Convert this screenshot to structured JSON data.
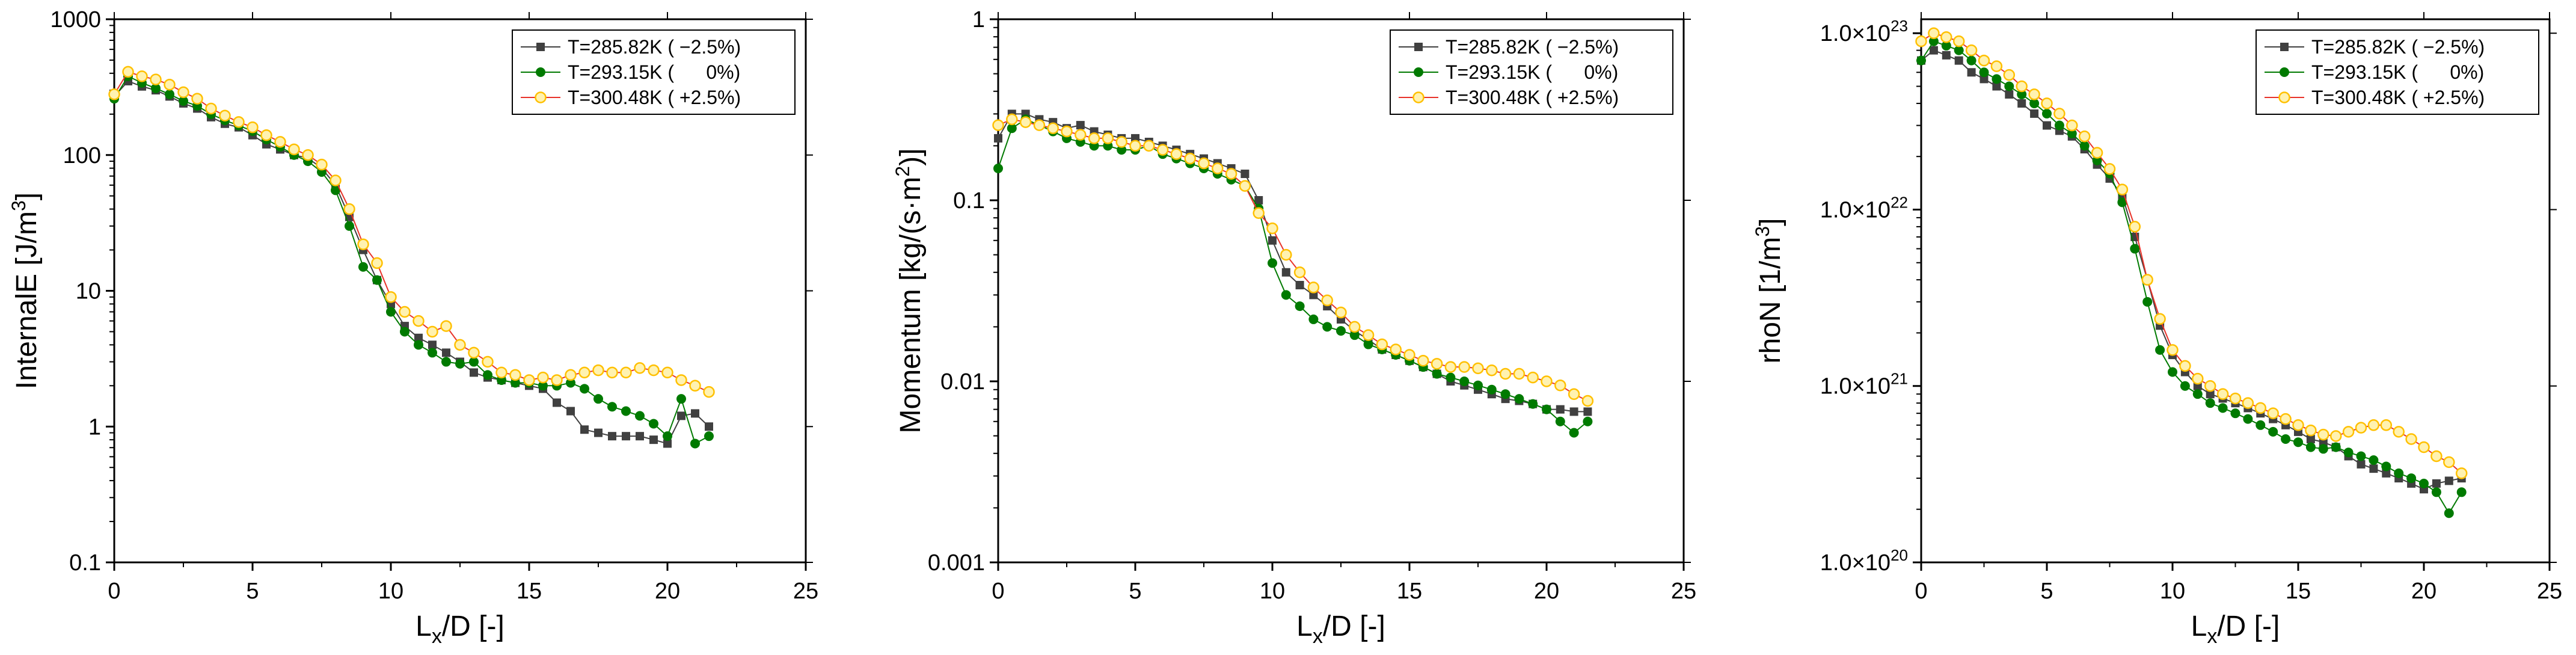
{
  "chart_data": [
    {
      "type": "line",
      "yscale": "log",
      "title": "",
      "xlabel": "L_x/D [-]",
      "ylabel": "InternalE [J/m^3]",
      "xlim": [
        0,
        25
      ],
      "ylim": [
        0.1,
        1000
      ],
      "xticks": [
        0,
        5,
        10,
        15,
        20,
        25
      ],
      "xtick_labels": [
        "0",
        "5",
        "10",
        "15",
        "20",
        "25"
      ],
      "yticks": [
        0.1,
        1,
        10,
        100,
        1000
      ],
      "ytick_labels": [
        "0.1",
        "1",
        "10",
        "100",
        "1000"
      ],
      "legend_position": "top-right",
      "series": [
        {
          "name": "T=285.82K ( −2.5%)",
          "color": "#404040",
          "marker": "square",
          "x": [
            0,
            0.5,
            1,
            1.5,
            2,
            2.5,
            3,
            3.5,
            4,
            4.5,
            5,
            5.5,
            6,
            6.5,
            7,
            7.5,
            8,
            8.5,
            9,
            9.5,
            10,
            10.5,
            11,
            11.5,
            12,
            12.5,
            13,
            13.5,
            14,
            14.5,
            15,
            15.5,
            16,
            16.5,
            17,
            17.5,
            18,
            18.5,
            19,
            19.5,
            20,
            20.5,
            21,
            21.5
          ],
          "y": [
            270,
            350,
            320,
            300,
            270,
            240,
            220,
            190,
            170,
            160,
            140,
            120,
            110,
            100,
            95,
            80,
            60,
            35,
            20,
            12,
            8,
            5.5,
            4.5,
            4,
            3.5,
            3,
            2.5,
            2.3,
            2.2,
            2.1,
            2.0,
            1.9,
            1.5,
            1.3,
            0.95,
            0.9,
            0.85,
            0.85,
            0.85,
            0.8,
            0.75,
            1.2,
            1.25,
            1.0
          ]
        },
        {
          "name": "T=293.15K (      0%)",
          "color": "#007a00",
          "marker": "circle",
          "x": [
            0,
            0.5,
            1,
            1.5,
            2,
            2.5,
            3,
            3.5,
            4,
            4.5,
            5,
            5.5,
            6,
            6.5,
            7,
            7.5,
            8,
            8.5,
            9,
            9.5,
            10,
            10.5,
            11,
            11.5,
            12,
            12.5,
            13,
            13.5,
            14,
            14.5,
            15,
            15.5,
            16,
            16.5,
            17,
            17.5,
            18,
            18.5,
            19,
            19.5,
            20,
            20.5,
            21,
            21.5
          ],
          "y": [
            260,
            380,
            340,
            310,
            280,
            250,
            230,
            200,
            180,
            165,
            150,
            130,
            115,
            100,
            90,
            75,
            55,
            30,
            15,
            12,
            7,
            5,
            4,
            3.5,
            3,
            2.9,
            3,
            2.4,
            2.2,
            2.1,
            2.1,
            2.0,
            2.0,
            2.1,
            1.9,
            1.6,
            1.4,
            1.3,
            1.2,
            1.05,
            0.85,
            1.6,
            0.75,
            0.85
          ]
        },
        {
          "name": "T=300.48K ( +2.5%)",
          "color": "#ffc000",
          "marker": "circle-open",
          "x": [
            0,
            0.5,
            1,
            1.5,
            2,
            2.5,
            3,
            3.5,
            4,
            4.5,
            5,
            5.5,
            6,
            6.5,
            7,
            7.5,
            8,
            8.5,
            9,
            9.5,
            10,
            10.5,
            11,
            11.5,
            12,
            12.5,
            13,
            13.5,
            14,
            14.5,
            15,
            15.5,
            16,
            16.5,
            17,
            17.5,
            18,
            18.5,
            19,
            19.5,
            20,
            20.5,
            21,
            21.5
          ],
          "y": [
            280,
            410,
            380,
            360,
            330,
            290,
            260,
            220,
            195,
            175,
            160,
            140,
            125,
            110,
            100,
            85,
            65,
            40,
            22,
            16,
            9,
            7,
            6,
            5,
            5.5,
            4,
            3.5,
            3,
            2.5,
            2.4,
            2.2,
            2.3,
            2.2,
            2.4,
            2.5,
            2.6,
            2.5,
            2.5,
            2.7,
            2.6,
            2.5,
            2.2,
            2.0,
            1.8
          ]
        }
      ]
    },
    {
      "type": "line",
      "yscale": "log",
      "title": "",
      "xlabel": "L_x/D [-]",
      "ylabel": "Momentum [kg/(s·m^2)]",
      "xlim": [
        0,
        25
      ],
      "ylim": [
        0.001,
        1
      ],
      "xticks": [
        0,
        5,
        10,
        15,
        20,
        25
      ],
      "xtick_labels": [
        "0",
        "5",
        "10",
        "15",
        "20",
        "25"
      ],
      "yticks": [
        0.001,
        0.01,
        0.1,
        1
      ],
      "ytick_labels": [
        "0.001",
        "0.01",
        "0.1",
        "1"
      ],
      "legend_position": "top-right",
      "series": [
        {
          "name": "T=285.82K ( −2.5%)",
          "color": "#404040",
          "marker": "square",
          "x": [
            0,
            0.5,
            1,
            1.5,
            2,
            2.5,
            3,
            3.5,
            4,
            4.5,
            5,
            5.5,
            6,
            6.5,
            7,
            7.5,
            8,
            8.5,
            9,
            9.5,
            10,
            10.5,
            11,
            11.5,
            12,
            12.5,
            13,
            13.5,
            14,
            14.5,
            15,
            15.5,
            16,
            16.5,
            17,
            17.5,
            18,
            18.5,
            19,
            19.5,
            20,
            20.5,
            21,
            21.5
          ],
          "y": [
            0.22,
            0.3,
            0.3,
            0.28,
            0.27,
            0.25,
            0.26,
            0.24,
            0.23,
            0.22,
            0.22,
            0.21,
            0.2,
            0.19,
            0.18,
            0.17,
            0.16,
            0.15,
            0.14,
            0.1,
            0.06,
            0.04,
            0.034,
            0.03,
            0.026,
            0.022,
            0.019,
            0.017,
            0.015,
            0.014,
            0.013,
            0.012,
            0.011,
            0.01,
            0.0095,
            0.009,
            0.0085,
            0.008,
            0.0078,
            0.0075,
            0.007,
            0.007,
            0.0068,
            0.0068
          ]
        },
        {
          "name": "T=293.15K (      0%)",
          "color": "#007a00",
          "marker": "circle",
          "x": [
            0,
            0.5,
            1,
            1.5,
            2,
            2.5,
            3,
            3.5,
            4,
            4.5,
            5,
            5.5,
            6,
            6.5,
            7,
            7.5,
            8,
            8.5,
            9,
            9.5,
            10,
            10.5,
            11,
            11.5,
            12,
            12.5,
            13,
            13.5,
            14,
            14.5,
            15,
            15.5,
            16,
            16.5,
            17,
            17.5,
            18,
            18.5,
            19,
            19.5,
            20,
            20.5,
            21,
            21.5
          ],
          "y": [
            0.15,
            0.25,
            0.28,
            0.26,
            0.24,
            0.22,
            0.21,
            0.2,
            0.2,
            0.19,
            0.19,
            0.2,
            0.18,
            0.17,
            0.16,
            0.15,
            0.14,
            0.13,
            0.12,
            0.09,
            0.045,
            0.03,
            0.026,
            0.022,
            0.02,
            0.019,
            0.018,
            0.016,
            0.015,
            0.014,
            0.013,
            0.012,
            0.011,
            0.0105,
            0.01,
            0.0095,
            0.009,
            0.0085,
            0.008,
            0.0075,
            0.007,
            0.006,
            0.0052,
            0.006
          ]
        },
        {
          "name": "T=300.48K ( +2.5%)",
          "color": "#ffc000",
          "marker": "circle-open",
          "x": [
            0,
            0.5,
            1,
            1.5,
            2,
            2.5,
            3,
            3.5,
            4,
            4.5,
            5,
            5.5,
            6,
            6.5,
            7,
            7.5,
            8,
            8.5,
            9,
            9.5,
            10,
            10.5,
            11,
            11.5,
            12,
            12.5,
            13,
            13.5,
            14,
            14.5,
            15,
            15.5,
            16,
            16.5,
            17,
            17.5,
            18,
            18.5,
            19,
            19.5,
            20,
            20.5,
            21,
            21.5
          ],
          "y": [
            0.26,
            0.28,
            0.27,
            0.26,
            0.25,
            0.24,
            0.23,
            0.22,
            0.22,
            0.21,
            0.2,
            0.2,
            0.19,
            0.18,
            0.17,
            0.16,
            0.15,
            0.14,
            0.12,
            0.085,
            0.07,
            0.05,
            0.04,
            0.033,
            0.028,
            0.024,
            0.02,
            0.018,
            0.016,
            0.015,
            0.014,
            0.013,
            0.0125,
            0.012,
            0.012,
            0.0118,
            0.0115,
            0.011,
            0.011,
            0.0105,
            0.01,
            0.0095,
            0.0085,
            0.0078
          ]
        }
      ]
    },
    {
      "type": "line",
      "yscale": "log",
      "title": "",
      "xlabel": "L_x/D [-]",
      "ylabel": "rhoN [1/m^3]",
      "xlim": [
        0,
        25
      ],
      "ylim": [
        1e+20,
        1.2e+23
      ],
      "xticks": [
        0,
        5,
        10,
        15,
        20,
        25
      ],
      "xtick_labels": [
        "0",
        "5",
        "10",
        "15",
        "20",
        "25"
      ],
      "yticks": [
        1e+20,
        1e+21,
        1e+22,
        1e+23
      ],
      "ytick_labels": [
        "1.0×10^20",
        "1.0×10^21",
        "1.0×10^22",
        "1.0×10^23"
      ],
      "legend_position": "top-right",
      "series": [
        {
          "name": "T=285.82K ( −2.5%)",
          "color": "#404040",
          "marker": "square",
          "x": [
            0,
            0.5,
            1,
            1.5,
            2,
            2.5,
            3,
            3.5,
            4,
            4.5,
            5,
            5.5,
            6,
            6.5,
            7,
            7.5,
            8,
            8.5,
            9,
            9.5,
            10,
            10.5,
            11,
            11.5,
            12,
            12.5,
            13,
            13.5,
            14,
            14.5,
            15,
            15.5,
            16,
            16.5,
            17,
            17.5,
            18,
            18.5,
            19,
            19.5,
            20,
            20.5,
            21,
            21.5
          ],
          "y": [
            7e+22,
            8e+22,
            7.5e+22,
            7e+22,
            6e+22,
            5.5e+22,
            5e+22,
            4.5e+22,
            4e+22,
            3.5e+22,
            3e+22,
            2.8e+22,
            2.6e+22,
            2.2e+22,
            1.8e+22,
            1.5e+22,
            1.2e+22,
            7e+21,
            4e+21,
            2.2e+21,
            1.5e+21,
            1.2e+21,
            1e+21,
            9e+20,
            8.5e+20,
            8e+20,
            7.5e+20,
            7e+20,
            6.5e+20,
            6e+20,
            5.5e+20,
            5e+20,
            4.8e+20,
            4.5e+20,
            4e+20,
            3.6e+20,
            3.4e+20,
            3.2e+20,
            3e+20,
            2.8e+20,
            2.6e+20,
            2.8e+20,
            2.9e+20,
            3e+20
          ]
        },
        {
          "name": "T=293.15K (      0%)",
          "color": "#007a00",
          "marker": "circle",
          "x": [
            0,
            0.5,
            1,
            1.5,
            2,
            2.5,
            3,
            3.5,
            4,
            4.5,
            5,
            5.5,
            6,
            6.5,
            7,
            7.5,
            8,
            8.5,
            9,
            9.5,
            10,
            10.5,
            11,
            11.5,
            12,
            12.5,
            13,
            13.5,
            14,
            14.5,
            15,
            15.5,
            16,
            16.5,
            17,
            17.5,
            18,
            18.5,
            19,
            19.5,
            20,
            20.5,
            21,
            21.5
          ],
          "y": [
            7e+22,
            9e+22,
            8.5e+22,
            8e+22,
            7e+22,
            6e+22,
            5.5e+22,
            5e+22,
            4.5e+22,
            4e+22,
            3.5e+22,
            3e+22,
            2.7e+22,
            2.3e+22,
            1.9e+22,
            1.6e+22,
            1.1e+22,
            6e+21,
            3e+21,
            1.6e+21,
            1.2e+21,
            1e+21,
            9e+20,
            8e+20,
            7.5e+20,
            7e+20,
            6.5e+20,
            6e+20,
            5.5e+20,
            5e+20,
            4.8e+20,
            4.5e+20,
            4.4e+20,
            4.5e+20,
            4.2e+20,
            4e+20,
            3.8e+20,
            3.5e+20,
            3.2e+20,
            3e+20,
            2.8e+20,
            2.5e+20,
            1.9e+20,
            2.5e+20
          ]
        },
        {
          "name": "T=300.48K ( +2.5%)",
          "color": "#ffc000",
          "marker": "circle-open",
          "x": [
            0,
            0.5,
            1,
            1.5,
            2,
            2.5,
            3,
            3.5,
            4,
            4.5,
            5,
            5.5,
            6,
            6.5,
            7,
            7.5,
            8,
            8.5,
            9,
            9.5,
            10,
            10.5,
            11,
            11.5,
            12,
            12.5,
            13,
            13.5,
            14,
            14.5,
            15,
            15.5,
            16,
            16.5,
            17,
            17.5,
            18,
            18.5,
            19,
            19.5,
            20,
            20.5,
            21,
            21.5
          ],
          "y": [
            9e+22,
            1e+23,
            9.5e+22,
            9e+22,
            8e+22,
            7e+22,
            6.5e+22,
            5.8e+22,
            5e+22,
            4.5e+22,
            4e+22,
            3.5e+22,
            3e+22,
            2.6e+22,
            2.1e+22,
            1.7e+22,
            1.3e+22,
            8e+21,
            4e+21,
            2.4e+21,
            1.6e+21,
            1.3e+21,
            1.1e+21,
            1e+21,
            9e+20,
            8.5e+20,
            8e+20,
            7.5e+20,
            7e+20,
            6.5e+20,
            6e+20,
            5.6e+20,
            5.3e+20,
            5.2e+20,
            5.5e+20,
            5.8e+20,
            6e+20,
            6e+20,
            5.5e+20,
            5e+20,
            4.5e+20,
            4e+20,
            3.7e+20,
            3.2e+20
          ]
        }
      ]
    }
  ]
}
